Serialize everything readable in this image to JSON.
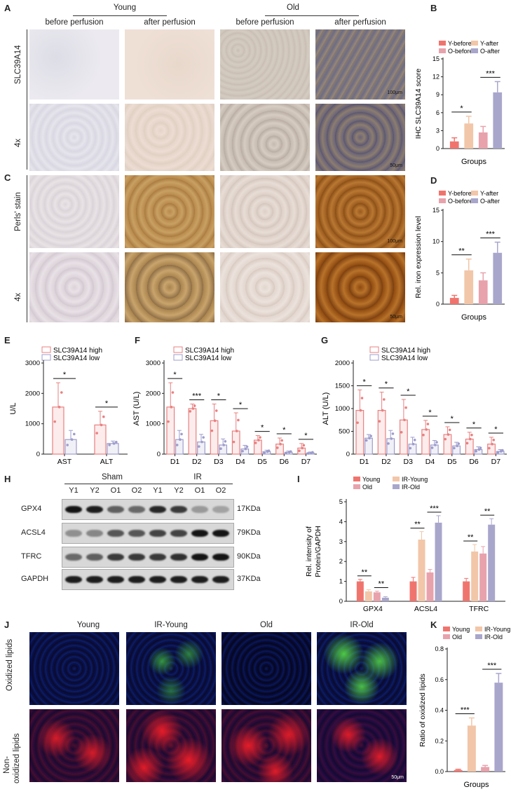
{
  "panel_letters": {
    "A": "A",
    "B": "B",
    "C": "C",
    "D": "D",
    "E": "E",
    "F": "F",
    "G": "G",
    "H": "H",
    "I": "I",
    "J": "J",
    "K": "K"
  },
  "panelA": {
    "group_young": "Young",
    "group_old": "Old",
    "col1": "before perfusion",
    "col2": "after perfusion",
    "col3": "before perfusion",
    "col4": "after perfusion",
    "row1": "SLC39A14",
    "row2": "4x",
    "scale1": "100μm",
    "scale2": "50μm"
  },
  "panelC": {
    "row1": "Perls' stain",
    "row2": "4x",
    "scale1": "100μm",
    "scale2": "50μm"
  },
  "panelJ": {
    "col1": "Young",
    "col2": "IR-Young",
    "col3": "Old",
    "col4": "IR-Old",
    "row1": "Oxidized lipids",
    "row2a": "Non-",
    "row2b": "oxidized lipids",
    "scale": "50μm"
  },
  "blot": {
    "group_sham": "Sham",
    "group_ir": "IR",
    "lanes": [
      "Y1",
      "Y2",
      "O1",
      "O2",
      "Y1",
      "Y2",
      "O1",
      "O2"
    ],
    "proteins": [
      "GPX4",
      "ACSL4",
      "TFRC",
      "GAPDH"
    ],
    "sizes": [
      "17KDa",
      "79KDa",
      "90KDa",
      "37KDa"
    ]
  },
  "colors": {
    "y_before": "#f0746e",
    "y_after": "#f2c6a8",
    "o_before": "#e8a2ac",
    "o_after": "#a9a6cc",
    "high": "#e98080",
    "low": "#9e9ccc"
  },
  "chart_data": [
    {
      "id": "B",
      "type": "bar",
      "ylabel": "IHC SLC39A14 score",
      "xlabel": "Groups",
      "yticks": [
        0,
        3,
        6,
        9,
        12,
        15
      ],
      "ylim": [
        0,
        15
      ],
      "legend": [
        "Y-before",
        "Y-after",
        "O-before",
        "O-after"
      ],
      "values": [
        1.2,
        4.2,
        2.7,
        9.4
      ],
      "errors": [
        0.6,
        1.2,
        1.0,
        1.8
      ],
      "sig": [
        {
          "a": 0,
          "b": 1,
          "label": "*"
        },
        {
          "a": 2,
          "b": 3,
          "label": "***"
        }
      ]
    },
    {
      "id": "D",
      "type": "bar",
      "ylabel": "Rel. iron expression level",
      "xlabel": "Groups",
      "yticks": [
        0,
        5,
        10,
        15
      ],
      "ylim": [
        0,
        15
      ],
      "legend": [
        "Y-before",
        "Y-after",
        "O-before",
        "O-after"
      ],
      "values": [
        1.0,
        5.4,
        3.8,
        8.2
      ],
      "errors": [
        0.4,
        1.8,
        1.2,
        1.7
      ],
      "sig": [
        {
          "a": 0,
          "b": 1,
          "label": "**"
        },
        {
          "a": 2,
          "b": 3,
          "label": "***"
        }
      ]
    },
    {
      "id": "E",
      "type": "bar",
      "ylabel": "U/L",
      "categories": [
        "AST",
        "ALT"
      ],
      "yticks": [
        0,
        1000,
        2000,
        3000
      ],
      "ylim": [
        0,
        3000
      ],
      "legend": [
        "SLC39A14 high",
        "SLC39A14 low"
      ],
      "series": [
        {
          "name": "SLC39A14 high",
          "values": [
            1550,
            960
          ],
          "errors": [
            800,
            450
          ]
        },
        {
          "name": "SLC39A14 low",
          "values": [
            480,
            350
          ],
          "errors": [
            300,
            80
          ]
        }
      ],
      "sig": [
        "*",
        "*"
      ]
    },
    {
      "id": "F",
      "type": "bar",
      "ylabel": "AST (U/L)",
      "categories": [
        "D1",
        "D2",
        "D3",
        "D4",
        "D5",
        "D6",
        "D7"
      ],
      "yticks": [
        0,
        1000,
        2000,
        3000
      ],
      "ylim": [
        0,
        3000
      ],
      "legend": [
        "SLC39A14 high",
        "SLC39A14 low"
      ],
      "series": [
        {
          "name": "SLC39A14 high",
          "values": [
            1550,
            1500,
            1100,
            760,
            460,
            330,
            200
          ],
          "errors": [
            800,
            150,
            550,
            600,
            150,
            200,
            150
          ]
        },
        {
          "name": "SLC39A14 low",
          "values": [
            480,
            400,
            300,
            170,
            80,
            60,
            40
          ],
          "errors": [
            300,
            250,
            200,
            120,
            50,
            40,
            30
          ]
        }
      ],
      "sig": [
        "*",
        "***",
        "*",
        "*",
        "*",
        "*",
        "*"
      ]
    },
    {
      "id": "G",
      "type": "bar",
      "ylabel": "ALT (U/L)",
      "categories": [
        "D1",
        "D2",
        "D3",
        "D4",
        "D5",
        "D6",
        "D7"
      ],
      "yticks": [
        0,
        500,
        1000,
        1500,
        2000
      ],
      "ylim": [
        0,
        2000
      ],
      "legend": [
        "SLC39A14 high",
        "SLC39A14 low"
      ],
      "series": [
        {
          "name": "SLC39A14 high",
          "values": [
            960,
            960,
            750,
            540,
            430,
            330,
            220
          ],
          "errors": [
            450,
            400,
            450,
            200,
            170,
            150,
            150
          ]
        },
        {
          "name": "SLC39A14 low",
          "values": [
            350,
            340,
            220,
            200,
            180,
            100,
            60
          ],
          "errors": [
            80,
            180,
            150,
            100,
            80,
            60,
            40
          ]
        }
      ],
      "sig": [
        "*",
        "*",
        "*",
        "*",
        "*",
        "*",
        "*"
      ]
    },
    {
      "id": "I",
      "type": "bar",
      "ylabel1": "Rel. intensity of",
      "ylabel2": "Protein/GAPDH",
      "categories": [
        "GPX4",
        "ACSL4",
        "TFRC"
      ],
      "yticks": [
        0,
        1,
        2,
        3,
        4,
        5
      ],
      "ylim": [
        0,
        5
      ],
      "legend": [
        "Young",
        "IR-Young",
        "Old",
        "IR-Old"
      ],
      "series": [
        {
          "name": "Young",
          "values": [
            1.0,
            1.0,
            1.0
          ],
          "errors": [
            0.1,
            0.2,
            0.15
          ]
        },
        {
          "name": "IR-Young",
          "values": [
            0.5,
            3.1,
            2.5
          ],
          "errors": [
            0.08,
            0.4,
            0.35
          ]
        },
        {
          "name": "Old",
          "values": [
            0.45,
            1.45,
            2.4
          ],
          "errors": [
            0.06,
            0.15,
            0.35
          ]
        },
        {
          "name": "IR-Old",
          "values": [
            0.18,
            3.95,
            3.85
          ],
          "errors": [
            0.05,
            0.35,
            0.3
          ]
        }
      ],
      "sig": [
        [
          "**",
          "**"
        ],
        [
          "**",
          "***"
        ],
        [
          "**",
          "**"
        ]
      ]
    },
    {
      "id": "K",
      "type": "bar",
      "ylabel": "Ratio of oxidized lipids",
      "xlabel": "Groups",
      "yticks": [
        0.0,
        0.2,
        0.4,
        0.6,
        0.8
      ],
      "ylim": [
        0,
        0.8
      ],
      "legend": [
        "Young",
        "IR-Young",
        "Old",
        "IR-Old"
      ],
      "values": [
        0.01,
        0.3,
        0.03,
        0.58
      ],
      "errors": [
        0.005,
        0.05,
        0.01,
        0.06
      ],
      "sig": [
        {
          "a": 0,
          "b": 1,
          "label": "***"
        },
        {
          "a": 2,
          "b": 3,
          "label": "***"
        }
      ]
    }
  ]
}
